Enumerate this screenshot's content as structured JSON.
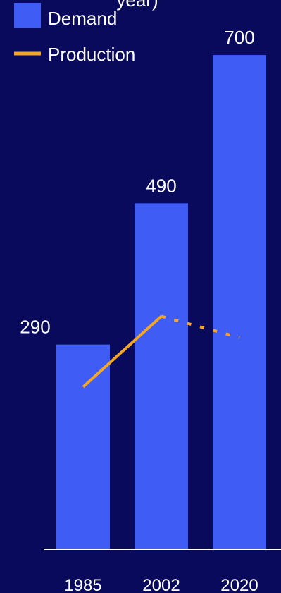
{
  "chart_data": {
    "type": "bar",
    "title": "year)",
    "categories": [
      "1985",
      "2002",
      "2020"
    ],
    "series": [
      {
        "name": "Demand",
        "type": "bar",
        "values": [
          290,
          490,
          700
        ],
        "data_labels": [
          "290",
          "490",
          "700"
        ]
      },
      {
        "name": "Production",
        "type": "line",
        "values": [
          230,
          330,
          300
        ],
        "segment_styles": [
          "solid",
          "dotted"
        ]
      }
    ],
    "ylim": [
      0,
      760
    ],
    "grid": false,
    "legend_position": "top-left"
  },
  "colors": {
    "background": "#0a0a5c",
    "bar": "#3f5cf5",
    "line": "#f5a623",
    "axis": "#ffffff",
    "text": "#ffffff"
  }
}
